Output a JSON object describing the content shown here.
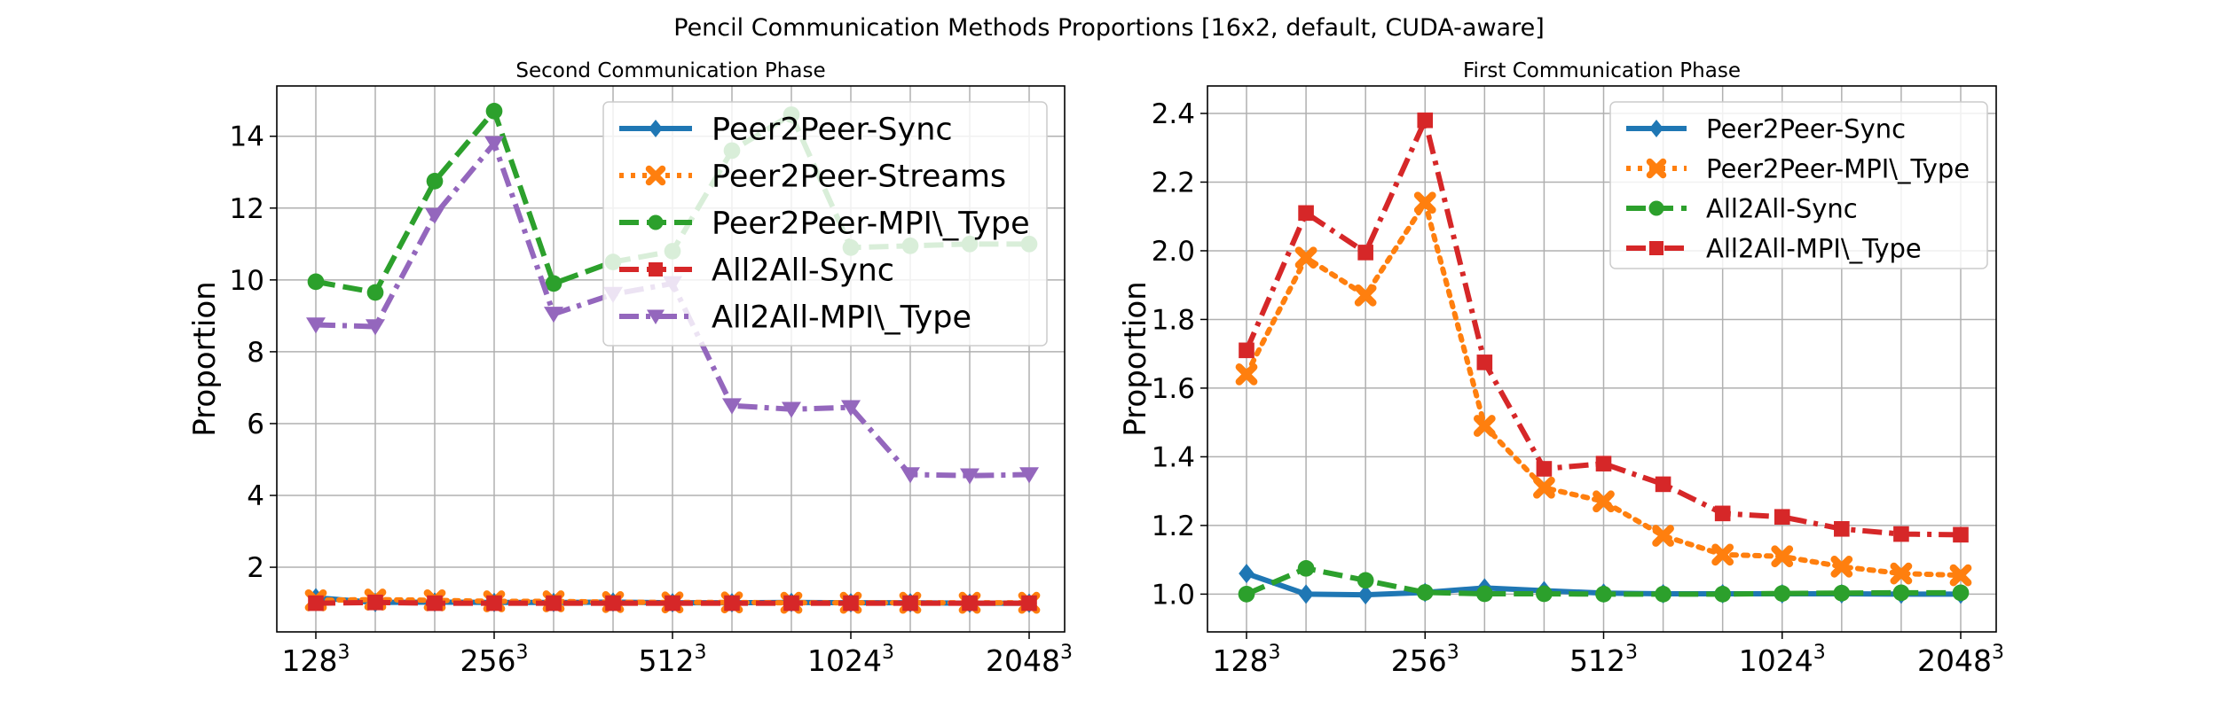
{
  "figure": {
    "title": "Pencil Communication Methods Proportions [16x2, default, CUDA-aware]"
  },
  "chart_data": [
    {
      "type": "line",
      "title": "Second Communication Phase",
      "xlabel": "",
      "ylabel": "Proportion",
      "x_tick_labels": [
        "128",
        "256",
        "512",
        "1024",
        "2048"
      ],
      "x_tick_superscript": "3",
      "y_ticks": [
        2,
        4,
        6,
        8,
        10,
        12,
        14
      ],
      "ylim": [
        0.2,
        15.4
      ],
      "grid": true,
      "legend_placement": "top-right",
      "x_points": 13,
      "series": [
        {
          "name": "Peer2Peer-Sync",
          "color": "#1f77b4",
          "dash": "solid",
          "marker": "diamond",
          "values": [
            1.15,
            1.02,
            1.03,
            1.02,
            1.02,
            1.03,
            1.01,
            1.01,
            1.02,
            1.01,
            1.01,
            1.0,
            1.0
          ]
        },
        {
          "name": "Peer2Peer-Streams",
          "color": "#ff7f0e",
          "dash": "dotted",
          "marker": "x",
          "values": [
            1.08,
            1.1,
            1.08,
            1.05,
            1.05,
            1.03,
            1.02,
            1.02,
            1.01,
            1.01,
            1.01,
            1.01,
            1.01
          ]
        },
        {
          "name": "Peer2Peer-MPI\\_Type",
          "color": "#2ca02c",
          "dash": "dashed",
          "marker": "circle",
          "values": [
            9.95,
            9.65,
            12.75,
            14.7,
            9.9,
            10.5,
            10.8,
            13.6,
            14.6,
            10.9,
            10.95,
            11.0,
            11.0
          ]
        },
        {
          "name": "All2All-Sync",
          "color": "#d62728",
          "dash": "dashed",
          "marker": "square",
          "values": [
            1.0,
            1.02,
            1.0,
            1.0,
            1.0,
            1.0,
            1.0,
            1.0,
            1.0,
            1.0,
            1.0,
            1.0,
            1.0
          ]
        },
        {
          "name": "All2All-MPI\\_Type",
          "color": "#9467bd",
          "dash": "dashdot",
          "marker": "triangle-down",
          "values": [
            8.75,
            8.7,
            11.8,
            13.8,
            9.05,
            9.6,
            9.9,
            6.5,
            6.4,
            6.45,
            4.58,
            4.55,
            4.58
          ]
        }
      ]
    },
    {
      "type": "line",
      "title": "First Communication Phase",
      "xlabel": "",
      "ylabel": "Proportion",
      "x_tick_labels": [
        "128",
        "256",
        "512",
        "1024",
        "2048"
      ],
      "x_tick_superscript": "3",
      "y_ticks": [
        1.0,
        1.2,
        1.4,
        1.6,
        1.8,
        2.0,
        2.2,
        2.4
      ],
      "y_tick_labels": [
        "1.0",
        "1.2",
        "1.4",
        "1.6",
        "1.8",
        "2.0",
        "2.2",
        "2.4"
      ],
      "ylim": [
        0.89,
        2.48
      ],
      "grid": true,
      "legend_placement": "top-right",
      "x_points": 13,
      "series": [
        {
          "name": "Peer2Peer-Sync",
          "color": "#1f77b4",
          "dash": "solid",
          "marker": "diamond",
          "values": [
            1.06,
            1.0,
            0.998,
            1.005,
            1.018,
            1.01,
            1.003,
            1.001,
            1.001,
            1.001,
            1.001,
            1.0,
            1.0
          ]
        },
        {
          "name": "Peer2Peer-MPI\\_Type",
          "color": "#ff7f0e",
          "dash": "dotted",
          "marker": "x",
          "values": [
            1.64,
            1.98,
            1.87,
            2.14,
            1.49,
            1.31,
            1.27,
            1.17,
            1.115,
            1.11,
            1.08,
            1.06,
            1.055
          ]
        },
        {
          "name": "All2All-Sync",
          "color": "#2ca02c",
          "dash": "dashed",
          "marker": "circle",
          "values": [
            1.0,
            1.075,
            1.04,
            1.005,
            1.001,
            1.001,
            1.0,
            1.0,
            1.0,
            1.002,
            1.003,
            1.004,
            1.004
          ]
        },
        {
          "name": "All2All-MPI\\_Type",
          "color": "#d62728",
          "dash": "dashdot",
          "marker": "square",
          "values": [
            1.71,
            2.11,
            1.995,
            2.38,
            1.675,
            1.365,
            1.38,
            1.32,
            1.235,
            1.225,
            1.19,
            1.175,
            1.173
          ]
        }
      ]
    }
  ]
}
